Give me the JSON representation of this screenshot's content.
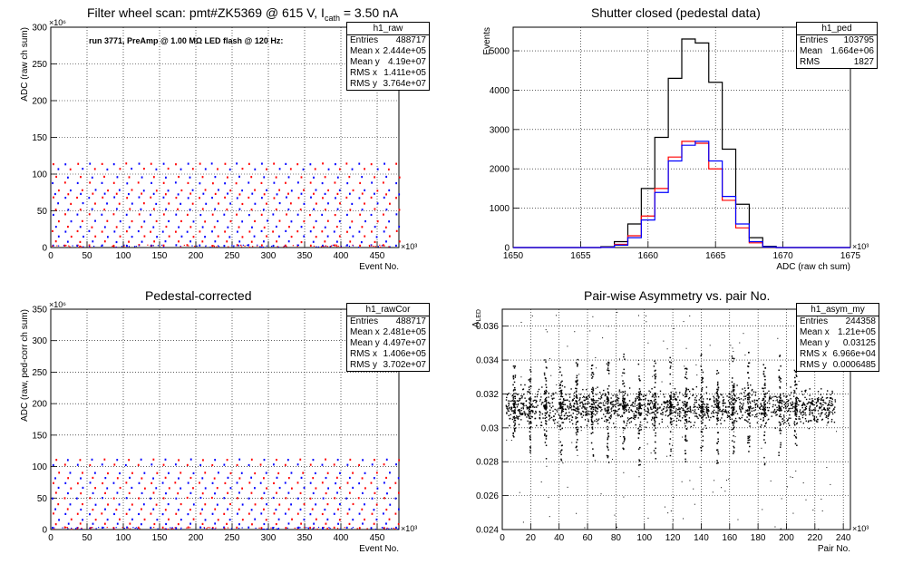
{
  "pads": [
    {
      "id": "raw",
      "title": "Filter wheel scan: pmt#ZK5369 @   615 V, I",
      "title_sub": "cath",
      "title_tail": " = 3.50 nA",
      "annotation": "run 3771, PreAmp @ 1.00 MΩ LED flash @  120 Hz:",
      "stats": {
        "name": "h1_raw",
        "rows": [
          {
            "k": "Entries",
            "v": "488717"
          },
          {
            "k": "Mean x",
            "v": "2.444e+05"
          },
          {
            "k": "Mean y",
            "v": "4.19e+07"
          },
          {
            "k": "RMS x",
            "v": "1.411e+05"
          },
          {
            "k": "RMS y",
            "v": "3.764e+07"
          }
        ]
      }
    },
    {
      "id": "ped",
      "title": "Shutter closed (pedestal data)",
      "stats": {
        "name": "h1_ped",
        "rows": [
          {
            "k": "Entries",
            "v": "103795"
          },
          {
            "k": "Mean",
            "v": "1.664e+06"
          },
          {
            "k": "RMS",
            "v": "1827"
          }
        ]
      }
    },
    {
      "id": "cor",
      "title": "Pedestal-corrected",
      "stats": {
        "name": "h1_rawCor",
        "rows": [
          {
            "k": "Entries",
            "v": "488717"
          },
          {
            "k": "Mean x",
            "v": "2.481e+05"
          },
          {
            "k": "Mean y",
            "v": "4.497e+07"
          },
          {
            "k": "RMS x",
            "v": "1.406e+05"
          },
          {
            "k": "RMS y",
            "v": "3.702e+07"
          }
        ]
      }
    },
    {
      "id": "asym",
      "title": "Pair-wise Asymmetry vs. pair No.",
      "stats": {
        "name": "h1_asym_my",
        "rows": [
          {
            "k": "Entries",
            "v": "244358"
          },
          {
            "k": "Mean x",
            "v": "1.21e+05"
          },
          {
            "k": "Mean y",
            "v": "0.03125"
          },
          {
            "k": "RMS x",
            "v": "6.966e+04"
          },
          {
            "k": "RMS y",
            "v": "0.0006485"
          }
        ]
      }
    }
  ],
  "chart_data": [
    {
      "type": "scatter",
      "title": "Filter wheel scan: pmt#ZK5369 @   615 V, I_cath = 3.50 nA",
      "xlabel": "Event No.",
      "ylabel": "ADC (raw ch sum)",
      "x_multiplier": "×10³",
      "y_multiplier": "×10⁶",
      "xlim": [
        0,
        480
      ],
      "ylim": [
        0,
        300
      ],
      "xticks": [
        0,
        50,
        100,
        150,
        200,
        250,
        300,
        350,
        400,
        450
      ],
      "yticks": [
        0,
        50,
        100,
        150,
        200,
        250,
        300
      ],
      "grid": true,
      "scan_period": 16.9,
      "levels": [
        3,
        8,
        15,
        22,
        28,
        36,
        45,
        52,
        60,
        68,
        73,
        78,
        88,
        96,
        107,
        114
      ],
      "colors": [
        "#0000ff",
        "#ff0000"
      ]
    },
    {
      "type": "line",
      "title": "Shutter closed (pedestal data)",
      "xlabel": "ADC (raw ch sum)",
      "ylabel": "Events",
      "x_multiplier": "×10³",
      "xlim": [
        1650,
        1675
      ],
      "ylim": [
        0,
        5600
      ],
      "xticks": [
        1650,
        1655,
        1660,
        1665,
        1670,
        1675
      ],
      "yticks": [
        0,
        1000,
        2000,
        3000,
        4000,
        5000
      ],
      "grid": true,
      "series": [
        {
          "color": "#000000",
          "x": [
            1656,
            1657,
            1658,
            1659,
            1660,
            1661,
            1662,
            1663,
            1664,
            1665,
            1666,
            1667,
            1668,
            1669,
            1670
          ],
          "values": [
            0,
            20,
            150,
            600,
            1500,
            2800,
            4300,
            5300,
            5200,
            4200,
            2500,
            1100,
            250,
            30,
            0
          ]
        },
        {
          "color": "#ff0000",
          "x": [
            1656,
            1657,
            1658,
            1659,
            1660,
            1661,
            1662,
            1663,
            1664,
            1665,
            1666,
            1667,
            1668,
            1669,
            1670
          ],
          "values": [
            0,
            10,
            80,
            300,
            800,
            1500,
            2300,
            2700,
            2650,
            2000,
            1200,
            500,
            120,
            10,
            0
          ]
        },
        {
          "color": "#0000ff",
          "x": [
            1656,
            1657,
            1658,
            1659,
            1660,
            1661,
            1662,
            1663,
            1664,
            1665,
            1666,
            1667,
            1668,
            1669,
            1670
          ],
          "values": [
            0,
            5,
            60,
            250,
            700,
            1400,
            2200,
            2600,
            2700,
            2200,
            1300,
            600,
            150,
            15,
            0
          ]
        }
      ]
    },
    {
      "type": "scatter",
      "title": "Pedestal-corrected",
      "xlabel": "Event No.",
      "ylabel": "ADC (raw, ped-corr ch sum)",
      "x_multiplier": "×10³",
      "y_multiplier": "×10⁶",
      "xlim": [
        0,
        480
      ],
      "ylim": [
        0,
        350
      ],
      "xticks": [
        0,
        50,
        100,
        150,
        200,
        250,
        300,
        350,
        400,
        450
      ],
      "yticks": [
        0,
        50,
        100,
        150,
        200,
        250,
        300,
        350
      ],
      "grid": true,
      "scan_period": 16.9,
      "levels": [
        3,
        9,
        16,
        25,
        32,
        40,
        50,
        58,
        66,
        74,
        82,
        90,
        103,
        111
      ],
      "colors": [
        "#0000ff",
        "#ff0000"
      ]
    },
    {
      "type": "scatter",
      "title": "Pair-wise Asymmetry vs. pair No.",
      "xlabel": "Pair No.",
      "ylabel": "A_LED",
      "x_multiplier": "×10³",
      "xlim": [
        0,
        245
      ],
      "ylim": [
        0.024,
        0.037
      ],
      "xticks": [
        0,
        20,
        40,
        60,
        80,
        100,
        120,
        140,
        160,
        180,
        200,
        220,
        240
      ],
      "yticks": [
        0.024,
        0.026,
        0.028,
        0.03,
        0.032,
        0.034,
        0.036
      ],
      "grid": true,
      "band_center": 0.03125,
      "band_halfwidth": 0.0007,
      "spike_x": [
        8,
        19,
        30,
        41,
        52,
        63,
        74,
        85,
        96,
        107,
        118,
        129,
        140,
        151,
        162,
        173,
        184,
        195,
        206
      ],
      "spike_top": [
        0.0338,
        0.0335,
        0.0342,
        0.0338,
        0.0345,
        0.0338,
        0.034,
        0.0345,
        0.0338,
        0.034,
        0.0343,
        0.034,
        0.0345,
        0.034,
        0.0343,
        0.0345,
        0.034,
        0.0345,
        0.0335
      ],
      "spike_bottom": [
        0.0295,
        0.0285,
        0.0282,
        0.028,
        0.0286,
        0.0283,
        0.028,
        0.0285,
        0.0278,
        0.028,
        0.0283,
        0.028,
        0.0285,
        0.0278,
        0.0285,
        0.0286,
        0.0275,
        0.0283,
        0.029
      ],
      "color": "#000000"
    }
  ]
}
